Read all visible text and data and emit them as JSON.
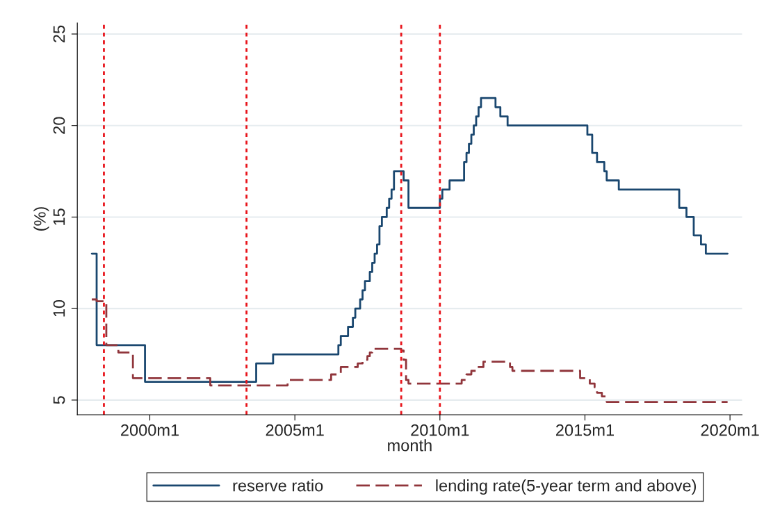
{
  "chart_data": {
    "type": "step",
    "xlabel": "month",
    "ylabel": "(%)",
    "xlim": [
      "1997-07",
      "2020-06"
    ],
    "xticks": [
      {
        "value": "2000-01",
        "label": "2000m1"
      },
      {
        "value": "2005-01",
        "label": "2005m1"
      },
      {
        "value": "2010-01",
        "label": "2010m1"
      },
      {
        "value": "2015-01",
        "label": "2015m1"
      },
      {
        "value": "2020-01",
        "label": "2020m1"
      }
    ],
    "ylim": [
      4.2,
      25.6
    ],
    "yticks": [
      5,
      10,
      15,
      20,
      25
    ],
    "grid": "y",
    "legend": "bottom",
    "series": [
      {
        "name": "reserve ratio",
        "color": "#1a476f",
        "line_style": "solid",
        "x": [
          "1998-01",
          "1998-03",
          "1999-11",
          "2003-09",
          "2004-04",
          "2006-07",
          "2006-08",
          "2006-11",
          "2007-01",
          "2007-02",
          "2007-04",
          "2007-05",
          "2007-06",
          "2007-08",
          "2007-09",
          "2007-10",
          "2007-11",
          "2007-12",
          "2008-01",
          "2008-03",
          "2008-04",
          "2008-05",
          "2008-06",
          "2008-10",
          "2008-12",
          "2010-01",
          "2010-02",
          "2010-05",
          "2010-11",
          "2010-12",
          "2011-01",
          "2011-02",
          "2011-03",
          "2011-04",
          "2011-05",
          "2011-06",
          "2011-12",
          "2012-02",
          "2012-05",
          "2015-02",
          "2015-04",
          "2015-06",
          "2015-09",
          "2015-10",
          "2016-03",
          "2018-04",
          "2018-07",
          "2018-10",
          "2019-01",
          "2019-03",
          "2019-12"
        ],
        "values": [
          13,
          8,
          6,
          7,
          7.5,
          8,
          8.5,
          9,
          9.5,
          10,
          10.5,
          11,
          11.5,
          12,
          12.5,
          13,
          13.5,
          14.5,
          15,
          15.5,
          16,
          16.5,
          17.5,
          17,
          15.5,
          16,
          16.5,
          17,
          18,
          18.5,
          19,
          19.5,
          20,
          20.5,
          21,
          21.5,
          21,
          20.5,
          20,
          19.5,
          18.5,
          18,
          17.5,
          17,
          16.5,
          15.5,
          15,
          14,
          13.5,
          13,
          13
        ]
      },
      {
        "name": "lending rate(5-year term and above)",
        "color": "#90353b",
        "line_style": "dashed",
        "x": [
          "1998-01",
          "1998-03",
          "1998-07",
          "1998-12",
          "1999-06",
          "2002-02",
          "2004-10",
          "2006-04",
          "2006-08",
          "2007-03",
          "2007-05",
          "2007-07",
          "2007-08",
          "2007-09",
          "2008-09",
          "2008-10",
          "2008-11",
          "2008-12",
          "2010-10",
          "2010-12",
          "2011-02",
          "2011-04",
          "2011-07",
          "2012-06",
          "2012-07",
          "2014-11",
          "2015-03",
          "2015-05",
          "2015-06",
          "2015-08",
          "2015-10",
          "2019-12"
        ],
        "values": [
          10.5,
          10.4,
          8.0,
          7.6,
          6.2,
          5.8,
          6.1,
          6.4,
          6.8,
          7.0,
          7.2,
          7.4,
          7.6,
          7.8,
          7.7,
          7.2,
          6.1,
          5.9,
          6.1,
          6.4,
          6.6,
          6.8,
          7.1,
          6.8,
          6.6,
          6.2,
          5.9,
          5.7,
          5.4,
          5.2,
          4.9,
          4.9
        ]
      }
    ],
    "ref_lines": [
      {
        "axis": "x",
        "value": "1998-06",
        "color": "#e8141b",
        "line_style": "dotted"
      },
      {
        "axis": "x",
        "value": "2003-05",
        "color": "#e8141b",
        "line_style": "dotted"
      },
      {
        "axis": "x",
        "value": "2008-09",
        "color": "#e8141b",
        "line_style": "dotted"
      },
      {
        "axis": "x",
        "value": "2010-01",
        "color": "#e8141b",
        "line_style": "dotted"
      }
    ]
  }
}
